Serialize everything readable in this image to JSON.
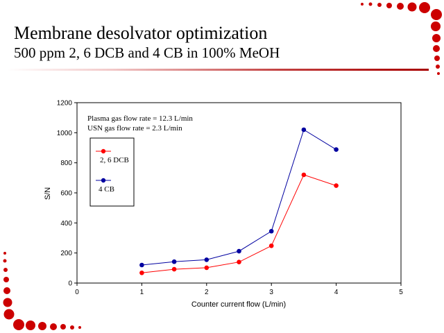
{
  "slide": {
    "title": "Membrane desolvator optimization",
    "subtitle": "500 ppm 2, 6 DCB and 4 CB in 100% MeOH"
  },
  "colors": {
    "accent": "#cc0000",
    "series_red": "#ff0000",
    "series_blue": "#0000a0"
  },
  "chart_data": {
    "type": "line",
    "title": "",
    "xlabel": "Counter current flow (L/min)",
    "ylabel": "S/N",
    "xlim": [
      0,
      5
    ],
    "ylim": [
      0,
      1200
    ],
    "x_ticks": [
      0,
      1,
      2,
      3,
      4,
      5
    ],
    "y_ticks": [
      0,
      200,
      400,
      600,
      800,
      1000,
      1200
    ],
    "grid": false,
    "legend_position": "top-left",
    "annotations": [
      "Plasma gas flow rate = 12.3 L/min",
      "USN gas flow rate = 2.3 L/min"
    ],
    "x": [
      1,
      1.5,
      2,
      2.5,
      3,
      3.5,
      4
    ],
    "series": [
      {
        "name": "2, 6 DCB",
        "color": "#ff0000",
        "values": [
          68,
          92,
          102,
          140,
          248,
          720,
          648
        ]
      },
      {
        "name": "4 CB",
        "color": "#0000a0",
        "values": [
          120,
          142,
          155,
          212,
          345,
          1020,
          888
        ]
      }
    ]
  }
}
